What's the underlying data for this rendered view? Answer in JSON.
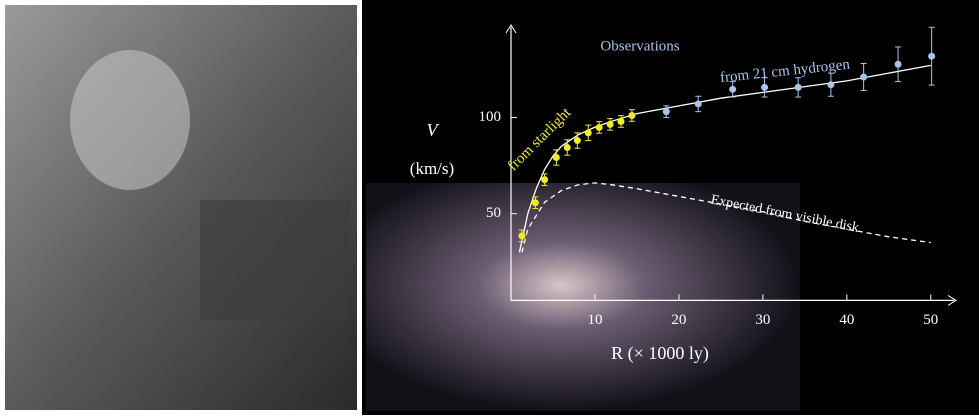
{
  "chart_data": {
    "type": "scatter",
    "title": "Observations",
    "y_label": "V",
    "y_unit_label": "(km/s)",
    "x_label": "R  (× 1000 ly)",
    "xlim": [
      0,
      53
    ],
    "ylim": [
      5,
      148
    ],
    "xticks": [
      10,
      20,
      30,
      40,
      50
    ],
    "yticks": [
      50,
      100
    ],
    "series": [
      {
        "name": "from  starlight",
        "color": "#f2ee1a",
        "x": [
          1.3,
          2.9,
          4.0,
          5.4,
          6.7,
          7.9,
          9.2,
          10.5,
          11.8,
          13.1,
          14.4
        ],
        "values": [
          38.5,
          55.7,
          67.7,
          79.2,
          84.4,
          88,
          92,
          94.8,
          96.4,
          97.9,
          101
        ],
        "errors": [
          3,
          3,
          3,
          4,
          4,
          4,
          4,
          3,
          3,
          3,
          3
        ]
      },
      {
        "name": "from 21 cm hydrogen",
        "color": "#a9c3ec",
        "x": [
          18.5,
          22.3,
          26.4,
          30.2,
          34.2,
          38.1,
          42,
          46.1,
          50.1
        ],
        "values": [
          103,
          107,
          114.6,
          115.6,
          115.6,
          117,
          121,
          127.6,
          131.8
        ],
        "errors": [
          3,
          4,
          4,
          5,
          5,
          6,
          7,
          9,
          15
        ]
      }
    ],
    "lines": [
      {
        "color": "#ffffff",
        "dashed": false,
        "x": [
          1,
          2,
          3,
          4,
          5,
          6,
          8,
          10,
          12,
          15,
          20,
          25,
          30,
          35,
          40,
          45,
          50
        ],
        "values": [
          30,
          50,
          63,
          73,
          80,
          85,
          91,
          95,
          98,
          102,
          106,
          110,
          113,
          116,
          119,
          123,
          127
        ]
      },
      {
        "name": "Expected from visible disk",
        "color": "#ffffff",
        "dashed": true,
        "x": [
          1.3,
          2,
          4,
          6,
          8,
          10,
          12,
          15,
          20,
          25,
          30,
          35,
          40,
          45,
          50
        ],
        "values": [
          30,
          42,
          56,
          62,
          65,
          66,
          65,
          63,
          59,
          55,
          51,
          46,
          42,
          38,
          35
        ]
      }
    ]
  }
}
